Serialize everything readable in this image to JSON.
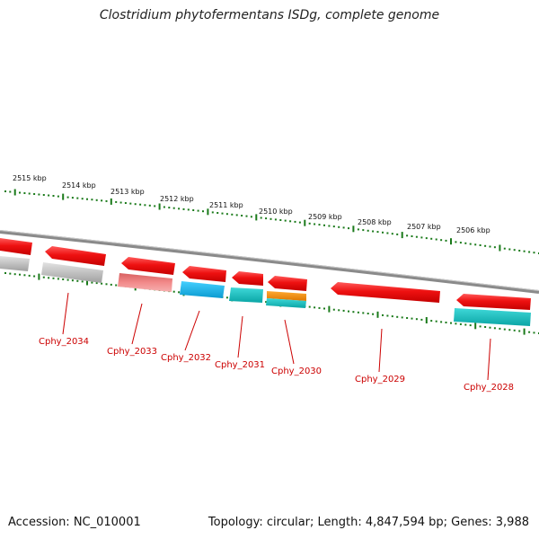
{
  "title": "Clostridium phytofermentans ISDg, complete genome",
  "footer": {
    "accession": "Accession: NC_010001",
    "topology": "Topology: circular; Length: 4,847,594 bp; Genes: 3,988"
  },
  "colors": {
    "backbone": "#8a8a8a",
    "tick": "#1a7a1a",
    "label": "#cc0000",
    "red": "#ee1111",
    "gray": "#b8b8b8",
    "pink": "#f08080",
    "blue": "#1ab8e8",
    "teal": "#15c0c0",
    "orange": "#ee8a10"
  },
  "scale_labels": [
    "2515 kbp",
    "2514 kbp",
    "2513 kbp",
    "2512 kbp",
    "2511 kbp",
    "2510 kbp",
    "2509 kbp",
    "2508 kbp",
    "2507 kbp",
    "2506 kbp"
  ],
  "genes": [
    {
      "label": "Cphy_2034"
    },
    {
      "label": "Cphy_2033"
    },
    {
      "label": "Cphy_2032"
    },
    {
      "label": "Cphy_2031"
    },
    {
      "label": "Cphy_2030"
    },
    {
      "label": "Cphy_2029"
    },
    {
      "label": "Cphy_2028"
    }
  ]
}
